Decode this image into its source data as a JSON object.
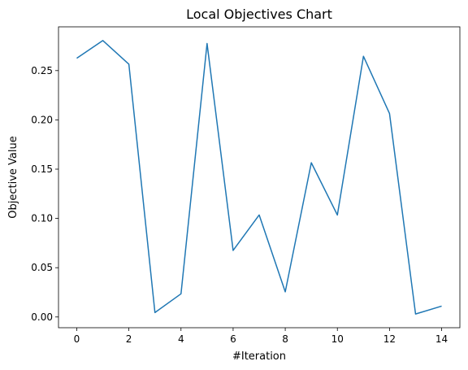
{
  "chart_data": {
    "type": "line",
    "title": "Local Objectives Chart",
    "xlabel": "#Iteration",
    "ylabel": "Objective Value",
    "x": [
      0,
      1,
      2,
      3,
      4,
      5,
      6,
      7,
      8,
      9,
      10,
      11,
      12,
      13,
      14
    ],
    "series": [
      {
        "values": [
          0.2625,
          0.2805,
          0.2565,
          0.0045,
          0.0235,
          0.2775,
          0.0675,
          0.1035,
          0.0255,
          0.1565,
          0.1035,
          0.2645,
          0.2065,
          0.003,
          0.011
        ],
        "color": "#1f77b4"
      }
    ],
    "xlim": [
      -0.7,
      14.7
    ],
    "ylim": [
      -0.0109,
      0.2944
    ],
    "xticks": [
      0,
      2,
      4,
      6,
      8,
      10,
      12,
      14
    ],
    "xtick_labels": [
      "0",
      "2",
      "4",
      "6",
      "8",
      "10",
      "12",
      "14"
    ],
    "yticks": [
      0.0,
      0.05,
      0.1,
      0.15,
      0.2,
      0.25
    ],
    "ytick_labels": [
      "0.00",
      "0.05",
      "0.10",
      "0.15",
      "0.20",
      "0.25"
    ],
    "grid": false,
    "legend": "none"
  }
}
